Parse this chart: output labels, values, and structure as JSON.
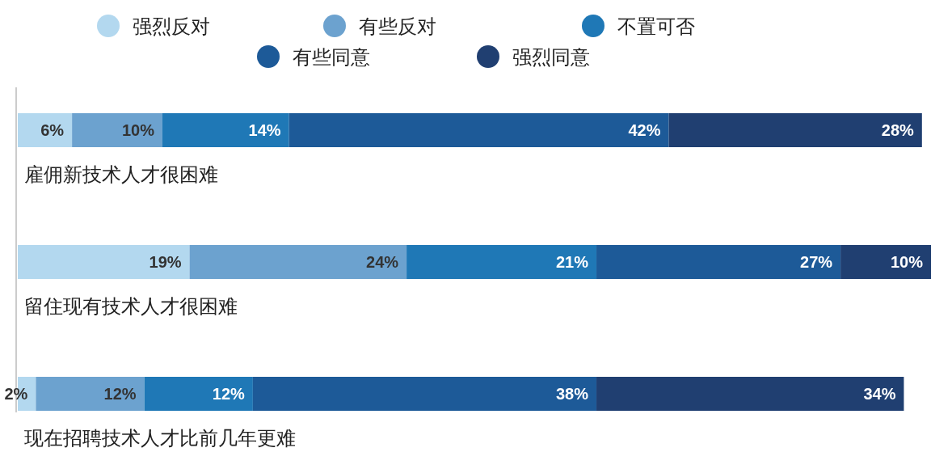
{
  "chart_data": {
    "type": "bar",
    "orientation": "horizontal",
    "stacked": true,
    "legend": "top",
    "categories": [
      "雇佣新技术人才很困难",
      "留住现有技术人才很困难",
      "现在招聘技术人才比前几年更难"
    ],
    "series": [
      {
        "name": "强烈反对",
        "color": "#b3d8ef",
        "values": [
          6,
          19,
          2
        ],
        "value_labels": [
          "6%",
          "19%",
          "2%"
        ]
      },
      {
        "name": "有些反对",
        "color": "#6ca2cf",
        "values": [
          10,
          24,
          12
        ],
        "value_labels": [
          "10%",
          "24%",
          "12%"
        ]
      },
      {
        "name": "不置可否",
        "color": "#1f78b6",
        "values": [
          14,
          21,
          12
        ],
        "value_labels": [
          "14%",
          "21%",
          "12%"
        ]
      },
      {
        "name": "有些同意",
        "color": "#1d5a98",
        "values": [
          42,
          27,
          38
        ],
        "value_labels": [
          "42%",
          "27%",
          "38%"
        ]
      },
      {
        "name": "强烈同意",
        "color": "#203f71",
        "values": [
          28,
          10,
          34
        ],
        "value_labels": [
          "28%",
          "10%",
          "34%"
        ]
      }
    ]
  }
}
